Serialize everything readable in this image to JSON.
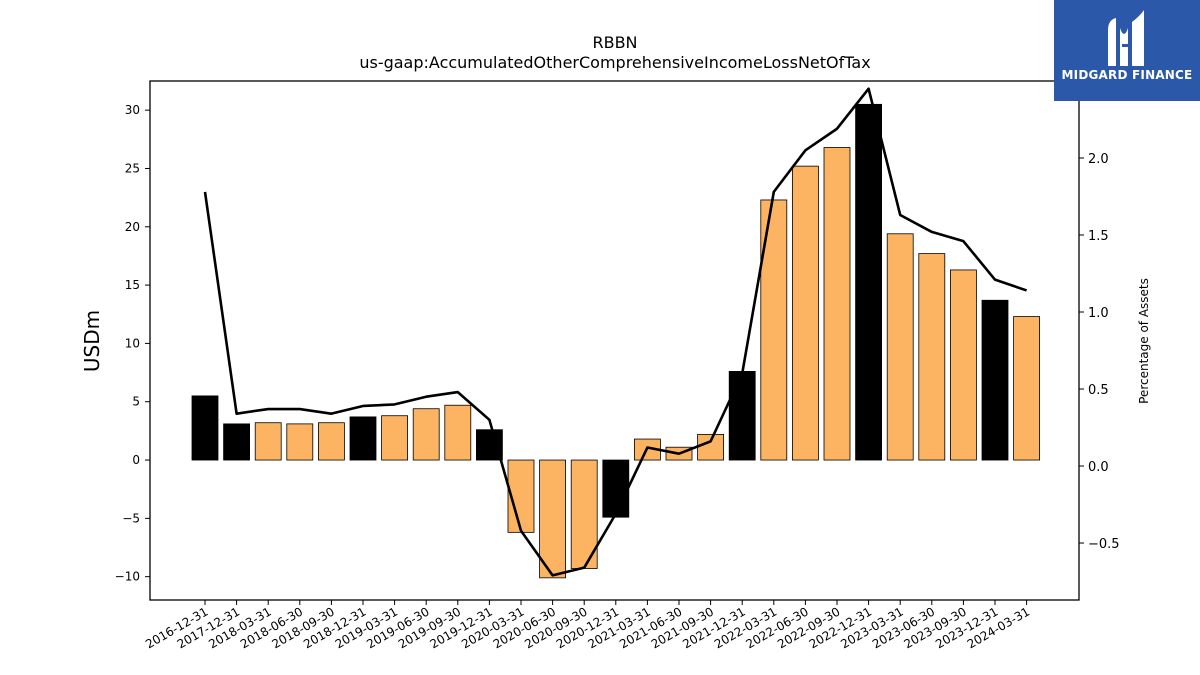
{
  "chart_data": {
    "type": "bar",
    "title": "RBBN",
    "subtitle": "us-gaap:AccumulatedOtherComprehensiveIncomeLossNetOfTax",
    "ylabel": "USDm",
    "y2label": "Percentage of Assets",
    "ylim": [
      -12,
      32.5
    ],
    "y2lim": [
      -0.87,
      2.5
    ],
    "yticks": [
      -10,
      -5,
      0,
      5,
      10,
      15,
      20,
      25,
      30
    ],
    "y2ticks": [
      -0.5,
      0.0,
      0.5,
      1.0,
      1.5,
      2.0
    ],
    "ytick_labels": [
      "−10",
      "−5",
      "0",
      "5",
      "10",
      "15",
      "20",
      "25",
      "30"
    ],
    "y2tick_labels": [
      "−0.5",
      "0.0",
      "0.5",
      "1.0",
      "1.5",
      "2.0"
    ],
    "categories": [
      "2016-12-31",
      "2017-12-31",
      "2018-03-31",
      "2018-06-30",
      "2018-09-30",
      "2018-12-31",
      "2019-03-31",
      "2019-06-30",
      "2019-09-30",
      "2019-12-31",
      "2020-03-31",
      "2020-06-30",
      "2020-09-30",
      "2020-12-31",
      "2021-03-31",
      "2021-06-30",
      "2021-09-30",
      "2021-12-31",
      "2022-03-31",
      "2022-06-30",
      "2022-09-30",
      "2022-12-31",
      "2023-03-31",
      "2023-06-30",
      "2023-09-30",
      "2023-12-31",
      "2024-03-31"
    ],
    "series": [
      {
        "type": "bar",
        "values": [
          5.5,
          3.1,
          3.2,
          3.1,
          3.2,
          3.7,
          3.8,
          4.4,
          4.7,
          2.6,
          -6.2,
          -10.1,
          -9.3,
          -4.9,
          1.8,
          1.1,
          2.2,
          7.6,
          22.3,
          25.2,
          26.8,
          30.5,
          19.4,
          17.7,
          16.3,
          13.7,
          12.3
        ],
        "colors": [
          "#000000",
          "#000000",
          "#fdb462",
          "#fdb462",
          "#fdb462",
          "#000000",
          "#fdb462",
          "#fdb462",
          "#fdb462",
          "#000000",
          "#fdb462",
          "#fdb462",
          "#fdb462",
          "#000000",
          "#fdb462",
          "#fdb462",
          "#fdb462",
          "#000000",
          "#fdb462",
          "#fdb462",
          "#fdb462",
          "#000000",
          "#fdb462",
          "#fdb462",
          "#fdb462",
          "#000000",
          "#fdb462"
        ]
      },
      {
        "type": "line",
        "axis": "right",
        "values": [
          1.78,
          0.34,
          0.37,
          0.37,
          0.34,
          0.39,
          0.4,
          0.45,
          0.48,
          0.3,
          -0.42,
          -0.71,
          -0.66,
          -0.31,
          0.12,
          0.08,
          0.16,
          0.6,
          1.78,
          2.05,
          2.19,
          2.45,
          1.63,
          1.52,
          1.46,
          1.21,
          1.14
        ],
        "color": "#000000"
      }
    ],
    "grid": false,
    "legend": "none"
  },
  "logo": {
    "text": "MIDGARD FINANCE",
    "color": "#2b58a8"
  }
}
